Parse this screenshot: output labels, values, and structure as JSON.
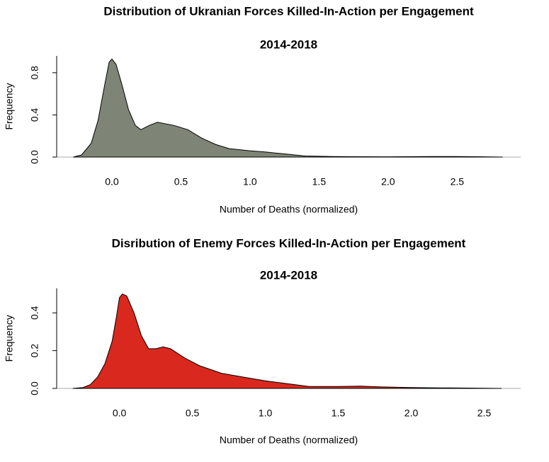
{
  "chart_data": [
    {
      "type": "area",
      "title": "Distribution of Ukranian Forces Killed-In-Action per Engagement",
      "subtitle": "2014-2018",
      "xlabel": "Number of Deaths (normalized)",
      "ylabel": "Frequency",
      "color": "#7e8576",
      "x": [
        -0.28,
        -0.22,
        -0.15,
        -0.1,
        -0.05,
        -0.02,
        0.0,
        0.03,
        0.07,
        0.12,
        0.17,
        0.21,
        0.27,
        0.33,
        0.45,
        0.55,
        0.65,
        0.75,
        0.85,
        1.0,
        1.1,
        1.25,
        1.4,
        1.6,
        2.0,
        2.3,
        2.5,
        2.7,
        2.83
      ],
      "values": [
        0,
        0.02,
        0.13,
        0.35,
        0.7,
        0.9,
        0.93,
        0.88,
        0.7,
        0.45,
        0.3,
        0.26,
        0.3,
        0.33,
        0.3,
        0.26,
        0.18,
        0.12,
        0.08,
        0.06,
        0.05,
        0.03,
        0.01,
        0.005,
        0.003,
        0.005,
        0.005,
        0.003,
        0
      ],
      "xlim": [
        -0.4,
        2.96
      ],
      "ylim": [
        0,
        0.96
      ],
      "xticks": [
        {
          "value": 0,
          "label": "0.0"
        },
        0.5,
        {
          "value": 1,
          "label": "1.0"
        },
        1.5,
        {
          "value": 2,
          "label": "2.0"
        },
        2.5
      ],
      "yticks": [
        {
          "value": 0,
          "label": "0.0"
        },
        0.4,
        0.8
      ]
    },
    {
      "type": "area",
      "title": "Disribution of Enemy Forces Killed-In-Action per Engagement",
      "subtitle": "2014-2018",
      "xlabel": "Number of Deaths (normalized)",
      "ylabel": "Frequency",
      "color": "#d9281d",
      "x": [
        -0.32,
        -0.25,
        -0.2,
        -0.15,
        -0.1,
        -0.05,
        -0.02,
        0.0,
        0.02,
        0.05,
        0.1,
        0.15,
        0.2,
        0.25,
        0.3,
        0.35,
        0.45,
        0.55,
        0.7,
        0.85,
        1.0,
        1.15,
        1.3,
        1.5,
        1.65,
        1.8,
        2.0,
        2.2,
        2.4,
        2.62
      ],
      "values": [
        0,
        0.005,
        0.02,
        0.06,
        0.13,
        0.25,
        0.38,
        0.48,
        0.5,
        0.49,
        0.4,
        0.28,
        0.21,
        0.21,
        0.22,
        0.21,
        0.16,
        0.12,
        0.08,
        0.06,
        0.04,
        0.025,
        0.01,
        0.01,
        0.012,
        0.008,
        0.005,
        0.003,
        0.002,
        0
      ],
      "xlim": [
        -0.43,
        2.75
      ],
      "ylim": [
        0,
        0.53
      ],
      "xticks": [
        {
          "value": 0,
          "label": "0.0"
        },
        0.5,
        {
          "value": 1,
          "label": "1.0"
        },
        1.5,
        {
          "value": 2,
          "label": "2.0"
        },
        2.5
      ],
      "yticks": [
        {
          "value": 0,
          "label": "0.0"
        },
        0.2,
        0.4
      ]
    }
  ]
}
